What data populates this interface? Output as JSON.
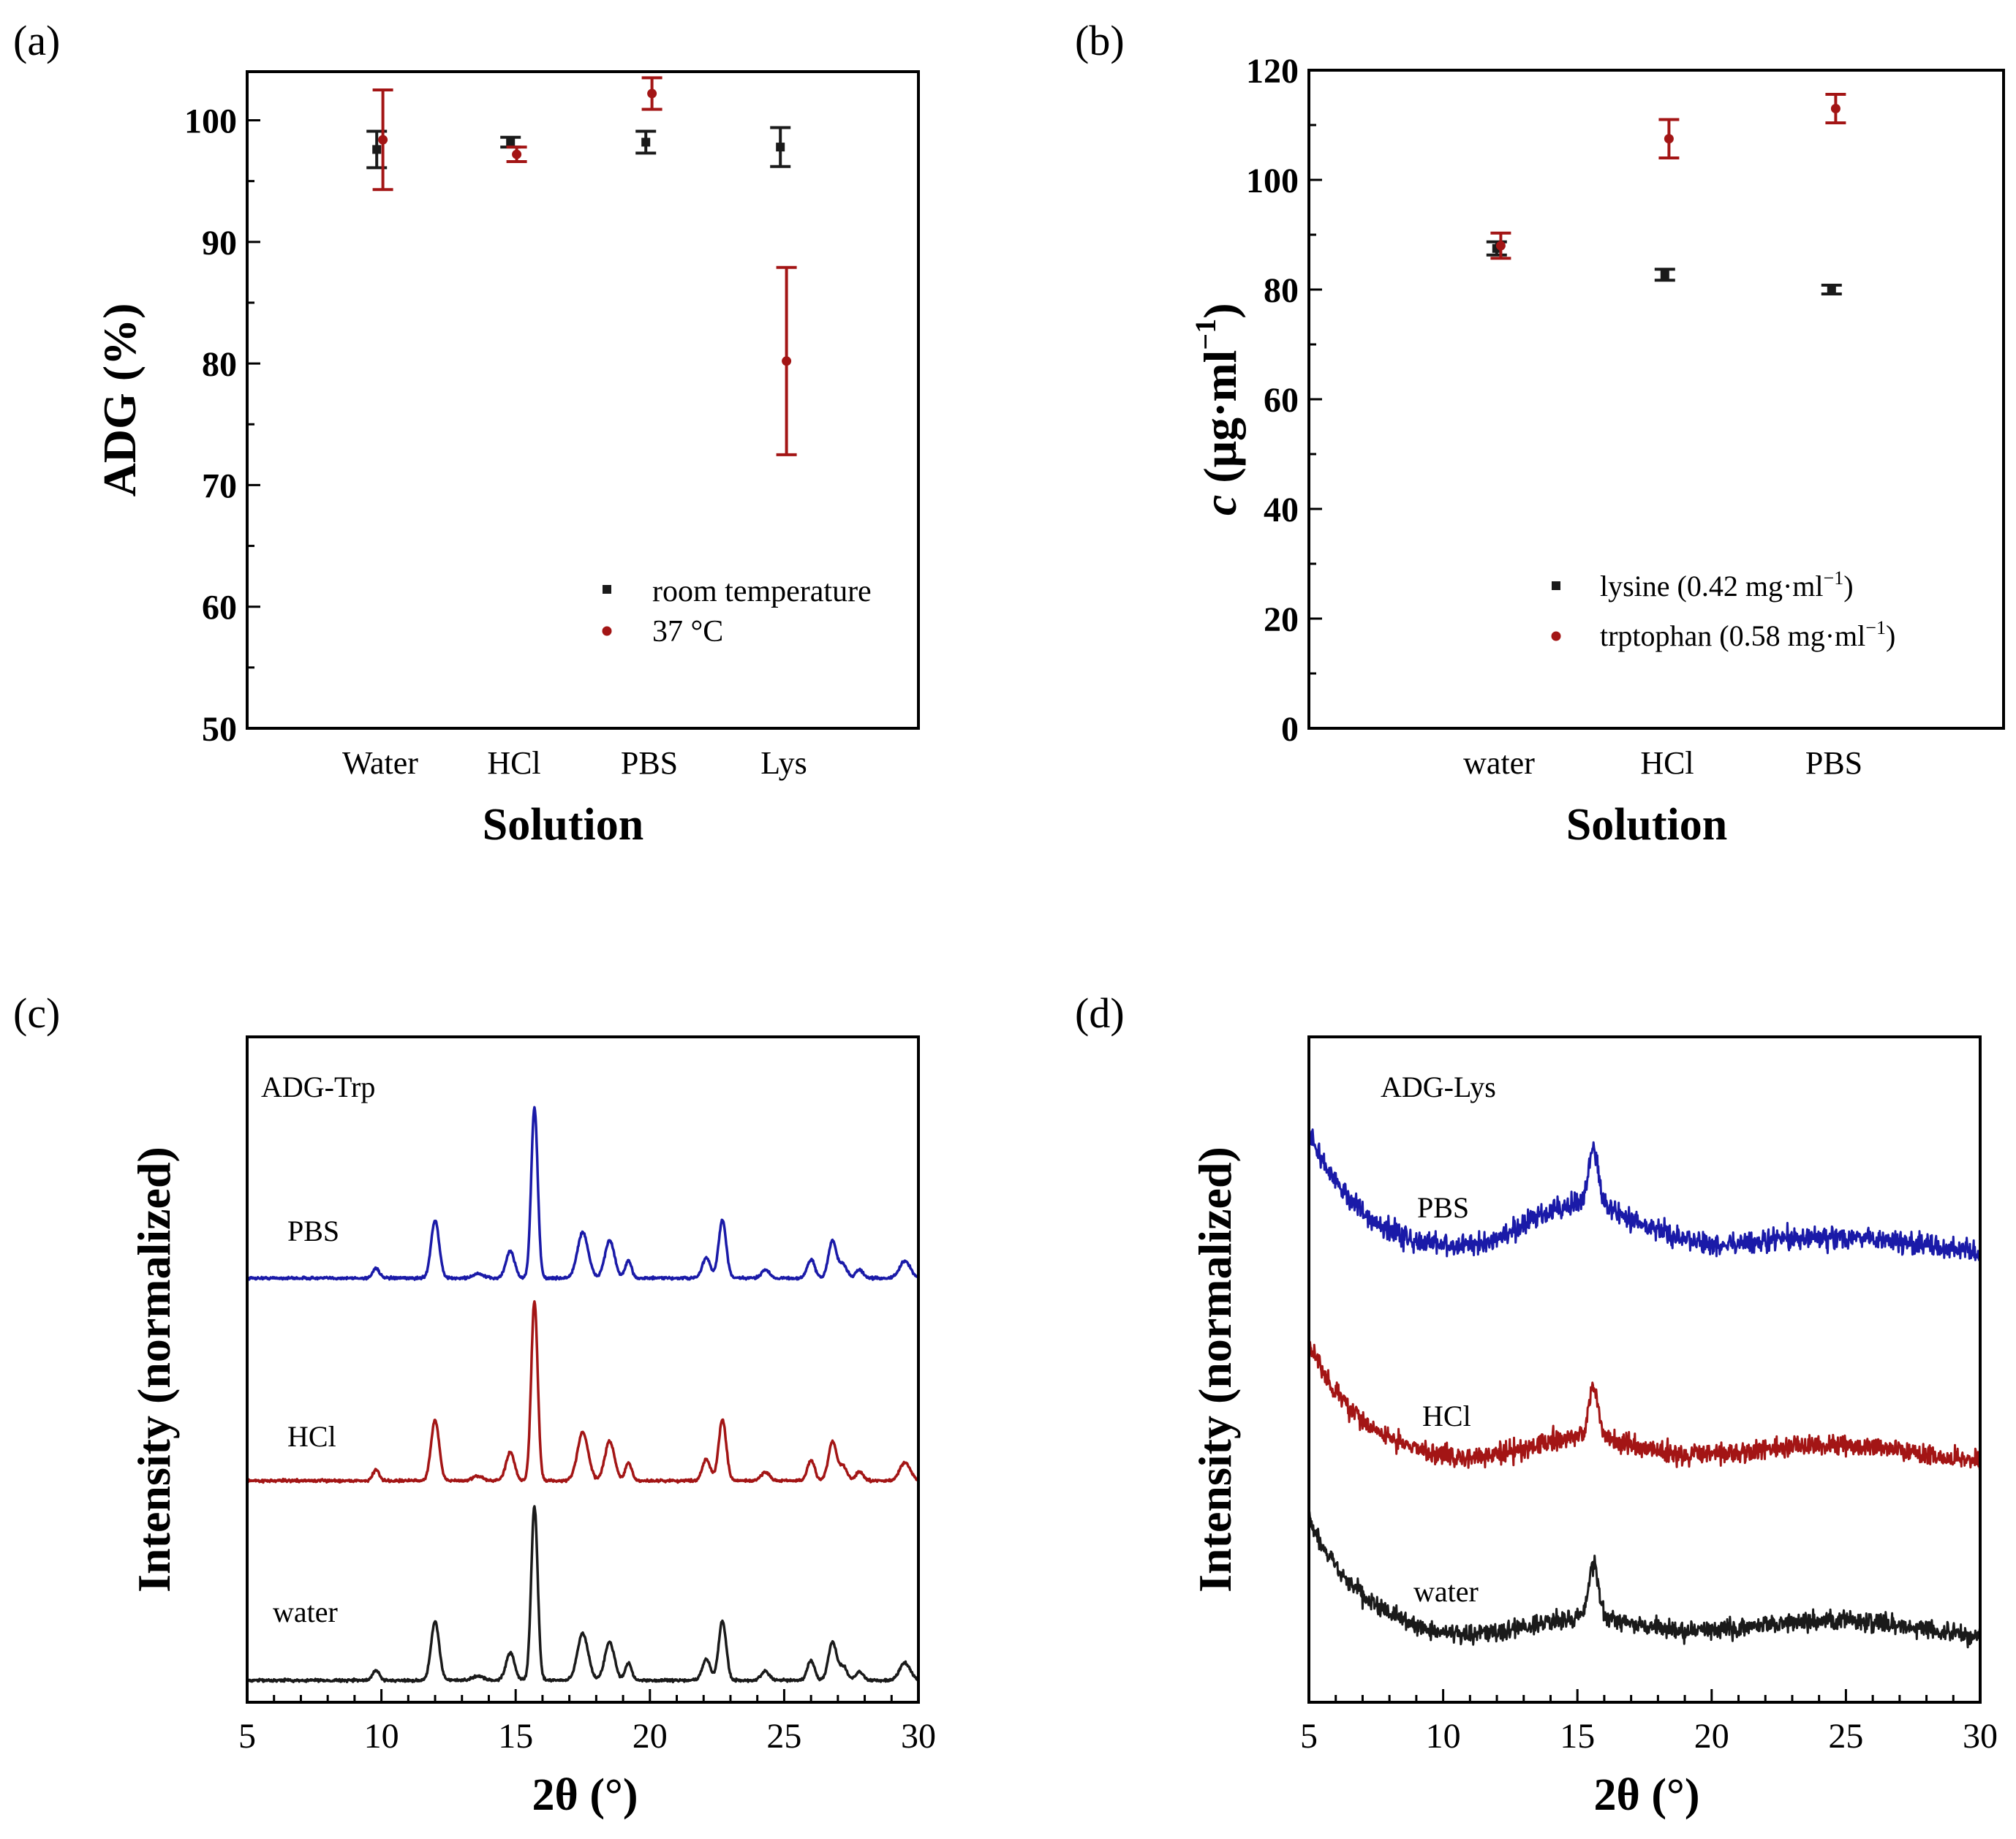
{
  "colors": {
    "black": "#1a1a1a",
    "red": "#a31515",
    "blue": "#1a1aa8",
    "axis": "#000000"
  },
  "chart_data": [
    {
      "panel": "(a)",
      "type": "scatter",
      "error_bars": true,
      "xlabel": "Solution",
      "ylabel": "ADG (%)",
      "categories": [
        "Water",
        "HCl",
        "PBS",
        "Lys"
      ],
      "ylim": [
        50,
        104
      ],
      "yticks": [
        50,
        60,
        70,
        80,
        90,
        100
      ],
      "series": [
        {
          "name": "room temperature",
          "color": "#1a1a1a",
          "marker": "square",
          "values": [
            97.6,
            98.2,
            98.2,
            97.8
          ],
          "errors": [
            1.5,
            0.4,
            0.9,
            1.6
          ]
        },
        {
          "name": "37 °C",
          "color": "#a31515",
          "marker": "circle",
          "values": [
            98.4,
            97.2,
            102.2,
            80.2
          ],
          "errors": [
            4.1,
            0.6,
            1.3,
            7.7
          ]
        }
      ],
      "legend": "lower-right"
    },
    {
      "panel": "(b)",
      "type": "scatter",
      "error_bars": true,
      "xlabel": "Solution",
      "ylabel": "c (μg·ml−1)",
      "ylabel_parts": {
        "var": "c",
        "units": "(μg·ml",
        "exp": "−1",
        "close": ")"
      },
      "categories": [
        "water",
        "HCl",
        "PBS"
      ],
      "ylim": [
        0,
        120
      ],
      "yticks": [
        0,
        20,
        40,
        60,
        80,
        100,
        120
      ],
      "series": [
        {
          "name": "lysine (0.42 mg·ml−1)",
          "label_main": "lysine (0.42 mg·ml",
          "label_exp": "−1",
          "label_close": ")",
          "color": "#1a1a1a",
          "marker": "square",
          "values": [
            87.5,
            82.7,
            80.0
          ],
          "errors": [
            1.2,
            1.0,
            0.8
          ]
        },
        {
          "name": "trptophan (0.58 mg·ml−1)",
          "label_main": "trptophan (0.58 mg·ml",
          "label_exp": "−1",
          "label_close": ")",
          "color": "#a31515",
          "marker": "circle",
          "values": [
            88.0,
            107.5,
            113.0
          ],
          "errors": [
            2.3,
            3.5,
            2.6
          ]
        }
      ],
      "legend": "lower-right"
    },
    {
      "panel": "(c)",
      "type": "line",
      "title": "ADG-Trp",
      "xlabel": "2θ (°)",
      "ylabel": "Intensity (normalized)",
      "xlim": [
        5,
        30
      ],
      "xticks": [
        5,
        10,
        15,
        20,
        25,
        30
      ],
      "peaks": [
        {
          "x": 9.8,
          "h": 0.06,
          "w": 0.12
        },
        {
          "x": 12.0,
          "h": 0.34,
          "w": 0.15
        },
        {
          "x": 13.6,
          "h": 0.025,
          "w": 0.2
        },
        {
          "x": 14.8,
          "h": 0.16,
          "w": 0.16
        },
        {
          "x": 15.7,
          "h": 1.0,
          "w": 0.12
        },
        {
          "x": 17.5,
          "h": 0.27,
          "w": 0.2
        },
        {
          "x": 18.5,
          "h": 0.22,
          "w": 0.18
        },
        {
          "x": 19.2,
          "h": 0.1,
          "w": 0.12
        },
        {
          "x": 22.1,
          "h": 0.12,
          "w": 0.15
        },
        {
          "x": 22.7,
          "h": 0.34,
          "w": 0.14
        },
        {
          "x": 24.3,
          "h": 0.05,
          "w": 0.15
        },
        {
          "x": 26.0,
          "h": 0.11,
          "w": 0.14
        },
        {
          "x": 26.8,
          "h": 0.22,
          "w": 0.15
        },
        {
          "x": 27.2,
          "h": 0.08,
          "w": 0.14
        },
        {
          "x": 27.8,
          "h": 0.05,
          "w": 0.14
        },
        {
          "x": 29.5,
          "h": 0.1,
          "w": 0.2
        }
      ],
      "series": [
        {
          "name": "PBS",
          "color": "#1a1aa8",
          "scale": 0.95
        },
        {
          "name": "HCl",
          "color": "#a31515",
          "scale": 1.0
        },
        {
          "name": "water",
          "color": "#1a1a1a",
          "scale": 0.97
        }
      ]
    },
    {
      "panel": "(d)",
      "type": "line",
      "title": "ADG-Lys",
      "xlabel": "2θ (°)",
      "ylabel": "Intensity (normalized)",
      "xlim": [
        5,
        30
      ],
      "xticks": [
        5,
        10,
        15,
        20,
        25,
        30
      ],
      "series": [
        {
          "name": "PBS",
          "color": "#1a1aa8"
        },
        {
          "name": "HCl",
          "color": "#a31515"
        },
        {
          "name": "water",
          "color": "#1a1a1a"
        }
      ]
    }
  ]
}
